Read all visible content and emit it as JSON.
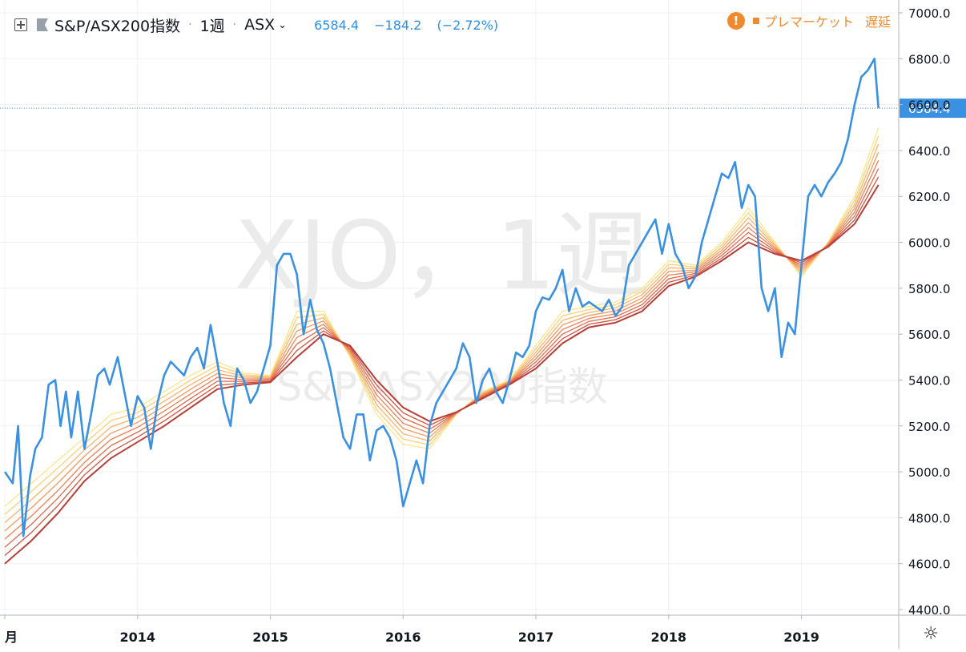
{
  "header": {
    "symbol": "S&P/ASX200指数",
    "interval": "1週",
    "exchange": "ASX",
    "last": "6584.4",
    "change": "−184.2",
    "change_pct": "(−2.72%)",
    "premarket": "プレマーケット",
    "delayed": "遅延"
  },
  "watermark": {
    "line1": "XJO，1週",
    "line2": "S&P/ASX200指数"
  },
  "colors": {
    "price": "#3a91e1",
    "last_label_bg": "#3a91e1",
    "ribbon": [
      "#fde68a",
      "#fbd17a",
      "#f7b56c",
      "#f29a60",
      "#ec8156",
      "#e06a4c",
      "#cf5442",
      "#b73f36"
    ],
    "warning": "#f08a2e"
  },
  "chart_data": {
    "type": "line",
    "title": "",
    "xlabel": "",
    "ylabel": "",
    "ylim": [
      4400,
      7000
    ],
    "xlim": [
      2013.0,
      2019.63
    ],
    "x_ticks": [
      {
        "value": 2013.0,
        "label": "月"
      },
      {
        "value": 2014.0,
        "label": "2014"
      },
      {
        "value": 2015.0,
        "label": "2015"
      },
      {
        "value": 2016.0,
        "label": "2016"
      },
      {
        "value": 2017.0,
        "label": "2017"
      },
      {
        "value": 2018.0,
        "label": "2018"
      },
      {
        "value": 2019.0,
        "label": "2019"
      }
    ],
    "y_ticks": [
      4400.0,
      4600.0,
      4800.0,
      5000.0,
      5200.0,
      5400.0,
      5600.0,
      5800.0,
      6000.0,
      6200.0,
      6400.0,
      6600.0,
      6800.0,
      7000.0
    ],
    "y_tick_labels": [
      "4400.0",
      "4600.0",
      "4800.0",
      "5000.0",
      "5200.0",
      "5400.0",
      "5600.0",
      "5800.0",
      "6000.0",
      "6200.0",
      "6400.0",
      "6600.0",
      "6800.0",
      "7000.0"
    ],
    "last_value": 6584.4,
    "last_value_label": "6584.4",
    "grid": true,
    "series": [
      {
        "role": "price",
        "x": [
          2013.0,
          2013.06,
          2013.1,
          2013.14,
          2013.19,
          2013.23,
          2013.28,
          2013.33,
          2013.38,
          2013.42,
          2013.46,
          2013.5,
          2013.55,
          2013.6,
          2013.65,
          2013.7,
          2013.75,
          2013.79,
          2013.85,
          2013.9,
          2013.95,
          2014.0,
          2014.05,
          2014.1,
          2014.15,
          2014.2,
          2014.25,
          2014.3,
          2014.35,
          2014.4,
          2014.45,
          2014.5,
          2014.55,
          2014.6,
          2014.65,
          2014.7,
          2014.75,
          2014.8,
          2014.85,
          2014.9,
          2014.95,
          2015.0,
          2015.05,
          2015.1,
          2015.15,
          2015.2,
          2015.25,
          2015.3,
          2015.35,
          2015.4,
          2015.45,
          2015.5,
          2015.55,
          2015.6,
          2015.65,
          2015.7,
          2015.75,
          2015.8,
          2015.85,
          2015.9,
          2015.95,
          2016.0,
          2016.05,
          2016.1,
          2016.15,
          2016.2,
          2016.25,
          2016.3,
          2016.35,
          2016.4,
          2016.45,
          2016.5,
          2016.55,
          2016.6,
          2016.65,
          2016.7,
          2016.75,
          2016.8,
          2016.85,
          2016.9,
          2016.95,
          2017.0,
          2017.05,
          2017.1,
          2017.15,
          2017.2,
          2017.25,
          2017.3,
          2017.35,
          2017.4,
          2017.45,
          2017.5,
          2017.55,
          2017.6,
          2017.65,
          2017.7,
          2017.75,
          2017.8,
          2017.85,
          2017.9,
          2017.95,
          2018.0,
          2018.05,
          2018.1,
          2018.15,
          2018.2,
          2018.25,
          2018.3,
          2018.35,
          2018.4,
          2018.45,
          2018.5,
          2018.55,
          2018.6,
          2018.65,
          2018.7,
          2018.75,
          2018.8,
          2018.85,
          2018.9,
          2018.95,
          2019.0,
          2019.05,
          2019.1,
          2019.15,
          2019.2,
          2019.25,
          2019.3,
          2019.35,
          2019.4,
          2019.45,
          2019.5,
          2019.55,
          2019.58
        ],
        "values": [
          5000,
          4950,
          5200,
          4720,
          4980,
          5100,
          5150,
          5380,
          5400,
          5200,
          5350,
          5150,
          5350,
          5100,
          5250,
          5420,
          5450,
          5380,
          5500,
          5350,
          5200,
          5330,
          5280,
          5100,
          5300,
          5420,
          5480,
          5450,
          5420,
          5500,
          5540,
          5450,
          5640,
          5480,
          5300,
          5200,
          5450,
          5400,
          5300,
          5350,
          5450,
          5550,
          5900,
          5950,
          5950,
          5860,
          5600,
          5750,
          5620,
          5560,
          5450,
          5300,
          5150,
          5100,
          5250,
          5250,
          5050,
          5180,
          5200,
          5150,
          5050,
          4850,
          4950,
          5050,
          4950,
          5200,
          5300,
          5350,
          5400,
          5450,
          5560,
          5500,
          5300,
          5400,
          5450,
          5350,
          5300,
          5400,
          5520,
          5500,
          5550,
          5700,
          5760,
          5750,
          5800,
          5880,
          5700,
          5800,
          5720,
          5740,
          5720,
          5700,
          5750,
          5680,
          5720,
          5900,
          5950,
          6000,
          6050,
          6100,
          5950,
          6080,
          5950,
          5900,
          5800,
          5850,
          6000,
          6100,
          6200,
          6300,
          6280,
          6350,
          6150,
          6250,
          6200,
          5800,
          5700,
          5800,
          5500,
          5650,
          5600,
          5900,
          6200,
          6250,
          6200,
          6260,
          6300,
          6350,
          6450,
          6600,
          6720,
          6750,
          6800,
          6584.4
        ]
      },
      {
        "role": "ribbon-upper",
        "x": [
          2013.0,
          2013.2,
          2013.4,
          2013.6,
          2013.8,
          2014.0,
          2014.2,
          2014.4,
          2014.6,
          2014.8,
          2015.0,
          2015.2,
          2015.4,
          2015.6,
          2015.8,
          2016.0,
          2016.2,
          2016.4,
          2016.6,
          2016.8,
          2017.0,
          2017.2,
          2017.4,
          2017.6,
          2017.8,
          2018.0,
          2018.2,
          2018.4,
          2018.6,
          2018.8,
          2019.0,
          2019.2,
          2019.4,
          2019.58
        ],
        "values": [
          4850,
          4950,
          5050,
          5150,
          5250,
          5280,
          5350,
          5420,
          5480,
          5430,
          5420,
          5700,
          5700,
          5500,
          5250,
          5120,
          5100,
          5250,
          5350,
          5400,
          5550,
          5700,
          5720,
          5740,
          5800,
          5920,
          5900,
          6000,
          6150,
          6000,
          5850,
          6000,
          6200,
          6500
        ]
      },
      {
        "role": "ribbon-lower",
        "x": [
          2013.0,
          2013.2,
          2013.4,
          2013.6,
          2013.8,
          2014.0,
          2014.2,
          2014.4,
          2014.6,
          2014.8,
          2015.0,
          2015.2,
          2015.4,
          2015.6,
          2015.8,
          2016.0,
          2016.2,
          2016.4,
          2016.6,
          2016.8,
          2017.0,
          2017.2,
          2017.4,
          2017.6,
          2017.8,
          2018.0,
          2018.2,
          2018.4,
          2018.6,
          2018.8,
          2019.0,
          2019.2,
          2019.4,
          2019.58
        ],
        "values": [
          4600,
          4700,
          4820,
          4960,
          5060,
          5130,
          5200,
          5280,
          5360,
          5380,
          5390,
          5500,
          5600,
          5550,
          5400,
          5280,
          5220,
          5260,
          5320,
          5380,
          5450,
          5560,
          5630,
          5650,
          5700,
          5810,
          5850,
          5920,
          6000,
          5950,
          5920,
          5980,
          6080,
          6250
        ]
      }
    ]
  }
}
